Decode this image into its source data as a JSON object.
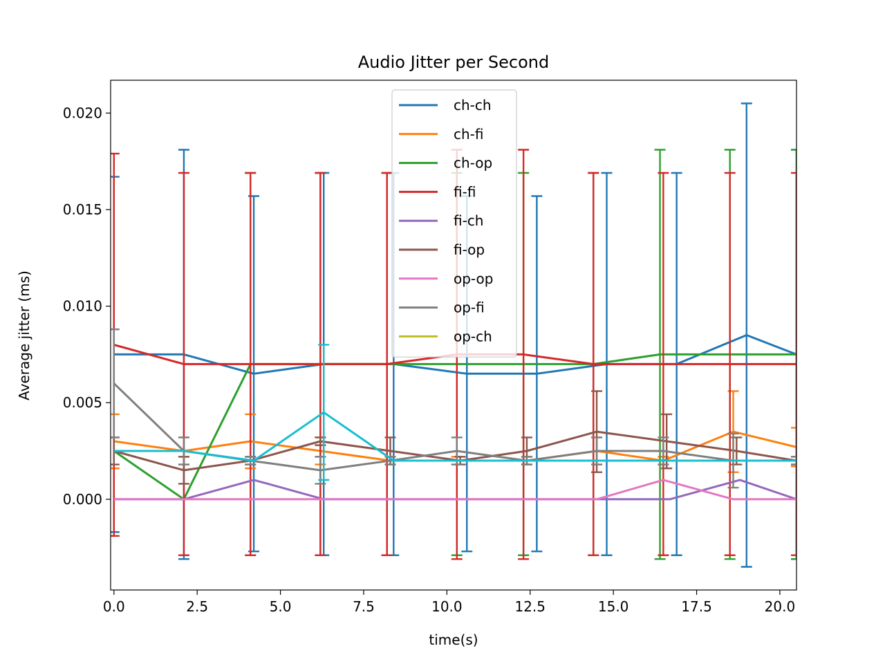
{
  "chart_data": {
    "type": "line",
    "title": "Audio Jitter per Second",
    "xlabel": "time(s)",
    "ylabel": "Average jitter (ms)",
    "xlim": [
      -0.1,
      20.5
    ],
    "ylim": [
      -0.0047,
      0.0217
    ],
    "x_ticks": [
      0.0,
      2.5,
      5.0,
      7.5,
      10.0,
      12.5,
      15.0,
      17.5,
      20.0
    ],
    "x_tick_labels": [
      "0.0",
      "2.5",
      "5.0",
      "7.5",
      "10.0",
      "12.5",
      "15.0",
      "17.5",
      "20.0"
    ],
    "y_ticks": [
      0.0,
      0.005,
      0.01,
      0.015,
      0.02
    ],
    "y_tick_labels": [
      "0.000",
      "0.005",
      "0.010",
      "0.015",
      "0.020"
    ],
    "grid": false,
    "legend_position": "upper-center",
    "series": [
      {
        "name": "ch-ch",
        "color": "#1f77b4",
        "x": [
          0.0,
          2.1,
          4.2,
          6.3,
          8.4,
          10.6,
          12.7,
          14.8,
          16.9,
          19.0,
          20.5
        ],
        "y": [
          0.0075,
          0.0075,
          0.0065,
          0.007,
          0.007,
          0.0065,
          0.0065,
          0.007,
          0.007,
          0.0085,
          0.0075
        ],
        "err": [
          0.0092,
          0.0106,
          0.0092,
          0.0099,
          0.0099,
          0.0092,
          0.0092,
          0.0099,
          0.0099,
          0.012,
          0.0106
        ]
      },
      {
        "name": "ch-fi",
        "color": "#ff7f0e",
        "x": [
          0.0,
          2.1,
          4.1,
          6.2,
          8.3,
          10.3,
          12.4,
          14.5,
          16.5,
          18.6,
          20.5
        ],
        "y": [
          0.003,
          0.0025,
          0.003,
          0.0025,
          0.002,
          0.002,
          0.002,
          0.0025,
          0.002,
          0.0035,
          0.0027
        ],
        "err": [
          0.0014,
          0.0007,
          0.0014,
          0.0007,
          0.0002,
          0.0002,
          0.0002,
          0.0007,
          0.0002,
          0.0021,
          0.001
        ]
      },
      {
        "name": "ch-op",
        "color": "#2ca02c",
        "x": [
          0.0,
          2.1,
          4.1,
          6.2,
          8.2,
          10.3,
          12.3,
          14.4,
          16.4,
          18.5,
          20.5
        ],
        "y": [
          0.0025,
          0.0,
          0.007,
          0.007,
          0.007,
          0.007,
          0.007,
          0.007,
          0.0075,
          0.0075,
          0.0075
        ],
        "err": [
          0.0,
          0.0,
          0.0099,
          0.0099,
          0.0099,
          0.0099,
          0.0099,
          0.0099,
          0.0106,
          0.0106,
          0.0106
        ]
      },
      {
        "name": "fi-fi",
        "color": "#d62728",
        "x": [
          0.0,
          2.1,
          4.1,
          6.2,
          8.2,
          10.3,
          12.3,
          14.4,
          16.5,
          18.5,
          20.5
        ],
        "y": [
          0.008,
          0.007,
          0.007,
          0.007,
          0.007,
          0.0075,
          0.0075,
          0.007,
          0.007,
          0.007,
          0.007
        ],
        "err": [
          0.0099,
          0.0099,
          0.0099,
          0.0099,
          0.0099,
          0.0106,
          0.0106,
          0.0099,
          0.0099,
          0.0099,
          0.0099
        ]
      },
      {
        "name": "fi-ch",
        "color": "#9467bd",
        "x": [
          0.0,
          2.1,
          4.2,
          6.3,
          8.4,
          10.4,
          12.5,
          14.6,
          16.7,
          18.8,
          20.5
        ],
        "y": [
          0.0,
          0.0,
          0.001,
          0.0,
          0.0,
          0.0,
          0.0,
          0.0,
          0.0,
          0.001,
          0.0
        ],
        "err": [
          0,
          0,
          0,
          0,
          0,
          0,
          0,
          0,
          0,
          0,
          0
        ]
      },
      {
        "name": "fi-op",
        "color": "#8c564b",
        "x": [
          0.0,
          2.1,
          4.1,
          6.2,
          8.3,
          10.4,
          12.4,
          14.5,
          16.6,
          18.7,
          20.5
        ],
        "y": [
          0.0025,
          0.0015,
          0.002,
          0.003,
          0.0025,
          0.002,
          0.0025,
          0.0035,
          0.003,
          0.0025,
          0.002
        ],
        "err": [
          0.0007,
          0.0007,
          0.0002,
          0.0002,
          0.0007,
          0.0002,
          0.0007,
          0.0021,
          0.0014,
          0.0007,
          0.0002
        ]
      },
      {
        "name": "op-op",
        "color": "#e377c2",
        "x": [
          0.0,
          2.1,
          4.1,
          6.2,
          8.3,
          10.3,
          12.4,
          14.5,
          16.5,
          18.6,
          20.5
        ],
        "y": [
          0.0,
          0.0,
          0.0,
          0.0,
          0.0,
          0.0,
          0.0,
          0.0,
          0.001,
          0.0,
          0.0
        ],
        "err": [
          0,
          0,
          0,
          0,
          0,
          0,
          0,
          0,
          0,
          0,
          0
        ]
      },
      {
        "name": "op-fi",
        "color": "#7f7f7f",
        "x": [
          0.0,
          2.1,
          4.1,
          6.2,
          8.3,
          10.3,
          12.4,
          14.5,
          16.5,
          18.6,
          20.5
        ],
        "y": [
          0.006,
          0.0025,
          0.002,
          0.0015,
          0.002,
          0.0025,
          0.002,
          0.0025,
          0.0025,
          0.002,
          0.002
        ],
        "err": [
          0.0028,
          0.0007,
          0.0002,
          0.0007,
          0.0002,
          0.0007,
          0.0002,
          0.0007,
          0.0007,
          0.0014,
          0.0002
        ]
      },
      {
        "name": "op-ch",
        "color": "#bcbd22",
        "x": [],
        "y": [],
        "err": []
      },
      {
        "name": "",
        "color": "#17becf",
        "x": [
          0.0,
          2.1,
          4.2,
          6.3,
          8.4,
          10.4,
          12.5,
          14.6,
          16.7,
          18.8,
          20.5
        ],
        "y": [
          0.0025,
          0.0025,
          0.002,
          0.0045,
          0.002,
          0.002,
          0.002,
          0.002,
          0.002,
          0.002,
          0.002
        ],
        "err": [
          0.0,
          0.0,
          0.0,
          0.0035,
          0.0,
          0.0,
          0.0,
          0.0,
          0.0,
          0.0,
          0.0
        ]
      }
    ]
  }
}
